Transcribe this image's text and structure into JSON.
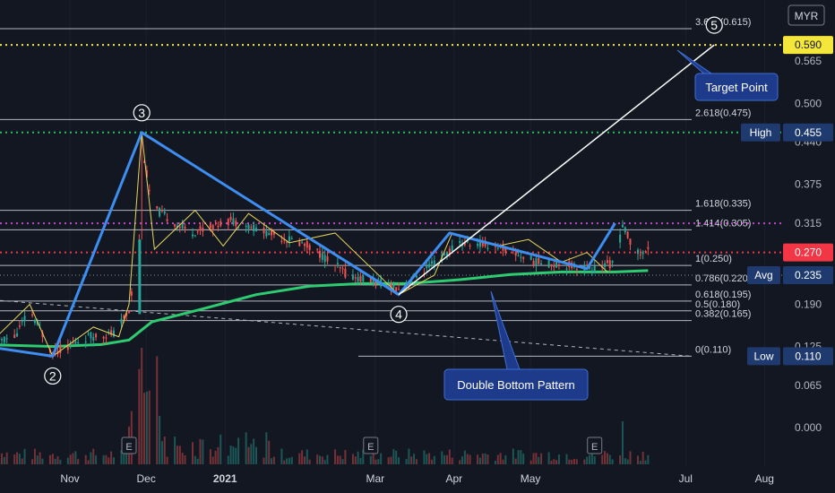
{
  "chart_data": {
    "type": "candlestick",
    "currency": "MYR",
    "x_ticks": [
      "Nov",
      "Dec",
      "2021",
      "Mar",
      "Apr",
      "May",
      "Jul",
      "Aug"
    ],
    "y_ticks": [
      "0.565",
      "0.500",
      "0.440",
      "0.375",
      "0.315",
      "0.190",
      "0.125",
      "0.065",
      "0.000"
    ],
    "fib_levels": [
      {
        "label": "3.618(0.615)",
        "value": 0.615
      },
      {
        "label": "2.618(0.475)",
        "value": 0.475
      },
      {
        "label": "1.618(0.335)",
        "value": 0.335
      },
      {
        "label": "1.414(0.305)",
        "value": 0.305
      },
      {
        "label": "1(0.250)",
        "value": 0.25
      },
      {
        "label": "0.786(0.220)",
        "value": 0.22
      },
      {
        "label": "0.618(0.195)",
        "value": 0.195
      },
      {
        "label": "0.5(0.180)",
        "value": 0.18
      },
      {
        "label": "0.382(0.165)",
        "value": 0.165
      },
      {
        "label": "0(0.110)",
        "value": 0.11
      }
    ],
    "price_markers": [
      {
        "label": "",
        "value": 0.59,
        "display": "0.590",
        "color": "#f5e63b",
        "text_color": "#131722"
      },
      {
        "label": "High",
        "value": 0.455,
        "display": "0.455",
        "color": "#1e3a6e",
        "text_color": "#ffffff"
      },
      {
        "label": "",
        "value": 0.27,
        "display": "0.270",
        "color": "#f23645",
        "text_color": "#ffffff"
      },
      {
        "label": "Avg",
        "value": 0.235,
        "display": "0.235",
        "color": "#1e3a6e",
        "text_color": "#ffffff"
      },
      {
        "label": "Low",
        "value": 0.11,
        "display": "0.110",
        "color": "#1e3a6e",
        "text_color": "#ffffff"
      }
    ],
    "wave_points": [
      {
        "label": "2",
        "date": "2020-10-27",
        "value": 0.11
      },
      {
        "label": "3",
        "date": "2020-12-01",
        "value": 0.455
      },
      {
        "label": "4",
        "date": "2021-03-12",
        "value": 0.205
      },
      {
        "label": "5",
        "date": "2021-07-14",
        "value": 0.59
      }
    ],
    "annotations": [
      "Target Point",
      "Double Bottom Pattern"
    ],
    "earnings_markers": [
      "E",
      "E",
      "E"
    ],
    "colors": {
      "up": "#26a69a",
      "down": "#ef5350",
      "wave": "#3d8ef0",
      "ma": "#2ecc71",
      "zigzag": "#e6d65a"
    }
  }
}
